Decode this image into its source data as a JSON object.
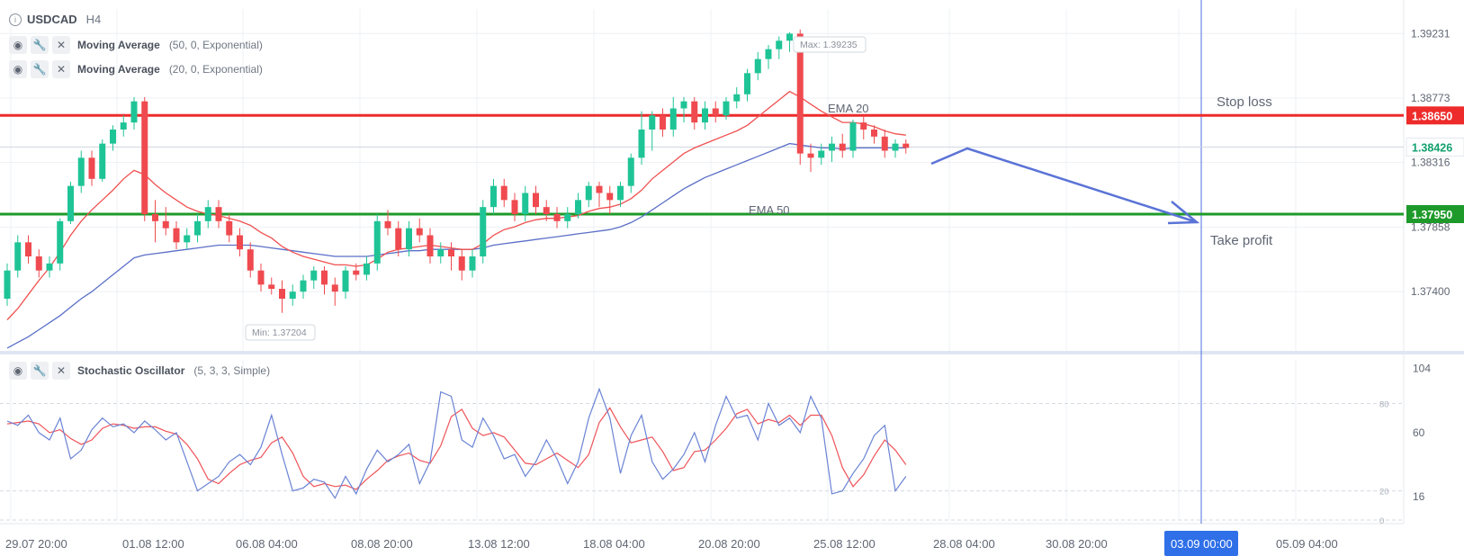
{
  "header": {
    "symbol": "USDCAD",
    "timeframe": "H4",
    "indicators": [
      {
        "name": "Moving Average",
        "params": "(50, 0, Exponential)"
      },
      {
        "name": "Moving Average",
        "params": "(20, 0, Exponential)"
      }
    ],
    "oscillator": {
      "name": "Stochastic Oscillator",
      "params": "(5, 3, 3, Simple)"
    }
  },
  "chart_data": {
    "type": "candlestick",
    "price_axis": {
      "ticks": [
        "1.39231",
        "1.38773",
        "1.38316",
        "1.37858",
        "1.37400"
      ]
    },
    "time_axis": {
      "ticks": [
        "29.07 20:00",
        "01.08 12:00",
        "06.08 04:00",
        "08.08 20:00",
        "13.08 12:00",
        "18.08 04:00",
        "20.08 20:00",
        "25.08 12:00",
        "28.08 04:00",
        "30.08 20:00",
        "05.09 04:00"
      ],
      "highlight": "03.09 00:00"
    },
    "candles": [
      [
        1.3735,
        1.3755,
        1.373,
        1.376
      ],
      [
        1.3755,
        1.3775,
        1.375,
        1.378
      ],
      [
        1.3775,
        1.3765,
        1.376,
        1.378
      ],
      [
        1.3765,
        1.3755,
        1.375,
        1.377
      ],
      [
        1.3755,
        1.376,
        1.375,
        1.3765
      ],
      [
        1.376,
        1.379,
        1.3755,
        1.3792
      ],
      [
        1.379,
        1.3815,
        1.3788,
        1.3818
      ],
      [
        1.3815,
        1.3835,
        1.381,
        1.384
      ],
      [
        1.3835,
        1.382,
        1.3815,
        1.384
      ],
      [
        1.382,
        1.3845,
        1.3818,
        1.3848
      ],
      [
        1.3845,
        1.3855,
        1.384,
        1.3858
      ],
      [
        1.3855,
        1.386,
        1.385,
        1.3865
      ],
      [
        1.386,
        1.3875,
        1.3855,
        1.3878
      ],
      [
        1.3875,
        1.3795,
        1.379,
        1.3878
      ],
      [
        1.3795,
        1.379,
        1.3775,
        1.3805
      ],
      [
        1.379,
        1.3785,
        1.378,
        1.38
      ],
      [
        1.3785,
        1.3775,
        1.377,
        1.379
      ],
      [
        1.3775,
        1.378,
        1.377,
        1.3785
      ],
      [
        1.378,
        1.379,
        1.3775,
        1.3795
      ],
      [
        1.379,
        1.38,
        1.3785,
        1.3805
      ],
      [
        1.38,
        1.379,
        1.3785,
        1.3805
      ],
      [
        1.379,
        1.378,
        1.3775,
        1.3795
      ],
      [
        1.378,
        1.377,
        1.3765,
        1.3785
      ],
      [
        1.377,
        1.3755,
        1.375,
        1.3775
      ],
      [
        1.3755,
        1.3745,
        1.374,
        1.376
      ],
      [
        1.3745,
        1.3742,
        1.3738,
        1.375
      ],
      [
        1.3742,
        1.3735,
        1.3725,
        1.3748
      ],
      [
        1.3735,
        1.374,
        1.373,
        1.3745
      ],
      [
        1.374,
        1.3748,
        1.3735,
        1.3752
      ],
      [
        1.3748,
        1.3755,
        1.3742,
        1.3758
      ],
      [
        1.3755,
        1.3745,
        1.3738,
        1.3758
      ],
      [
        1.3745,
        1.374,
        1.373,
        1.375
      ],
      [
        1.374,
        1.3755,
        1.3735,
        1.3758
      ],
      [
        1.3755,
        1.3752,
        1.3748,
        1.376
      ],
      [
        1.3752,
        1.376,
        1.3748,
        1.3765
      ],
      [
        1.376,
        1.379,
        1.3755,
        1.3795
      ],
      [
        1.379,
        1.3785,
        1.378,
        1.3798
      ],
      [
        1.3785,
        1.377,
        1.3765,
        1.379
      ],
      [
        1.377,
        1.3785,
        1.3765,
        1.379
      ],
      [
        1.3785,
        1.378,
        1.3775,
        1.3792
      ],
      [
        1.378,
        1.3765,
        1.376,
        1.3785
      ],
      [
        1.3765,
        1.377,
        1.376,
        1.3775
      ],
      [
        1.377,
        1.3765,
        1.3755,
        1.3775
      ],
      [
        1.3765,
        1.3755,
        1.3748,
        1.377
      ],
      [
        1.3755,
        1.3765,
        1.375,
        1.377
      ],
      [
        1.3765,
        1.38,
        1.376,
        1.3805
      ],
      [
        1.38,
        1.3815,
        1.3795,
        1.382
      ],
      [
        1.3815,
        1.3805,
        1.38,
        1.382
      ],
      [
        1.3805,
        1.3795,
        1.379,
        1.381
      ],
      [
        1.3795,
        1.381,
        1.379,
        1.3815
      ],
      [
        1.381,
        1.38,
        1.3795,
        1.3815
      ],
      [
        1.38,
        1.3795,
        1.379,
        1.3805
      ],
      [
        1.3795,
        1.379,
        1.3785,
        1.38
      ],
      [
        1.379,
        1.3795,
        1.3785,
        1.38
      ],
      [
        1.3795,
        1.3805,
        1.3792,
        1.381
      ],
      [
        1.3805,
        1.3815,
        1.38,
        1.3818
      ],
      [
        1.3815,
        1.381,
        1.38,
        1.3818
      ],
      [
        1.381,
        1.3805,
        1.3795,
        1.3815
      ],
      [
        1.3805,
        1.3815,
        1.38,
        1.3818
      ],
      [
        1.3815,
        1.3835,
        1.381,
        1.3838
      ],
      [
        1.3835,
        1.3855,
        1.383,
        1.3868
      ],
      [
        1.3855,
        1.3865,
        1.384,
        1.3868
      ],
      [
        1.3865,
        1.3855,
        1.385,
        1.387
      ],
      [
        1.3855,
        1.387,
        1.385,
        1.3878
      ],
      [
        1.387,
        1.3875,
        1.386,
        1.3878
      ],
      [
        1.3875,
        1.386,
        1.3855,
        1.3878
      ],
      [
        1.386,
        1.387,
        1.3855,
        1.3875
      ],
      [
        1.387,
        1.3865,
        1.386,
        1.3875
      ],
      [
        1.3865,
        1.3875,
        1.3862,
        1.3878
      ],
      [
        1.3875,
        1.388,
        1.387,
        1.3885
      ],
      [
        1.388,
        1.3895,
        1.3875,
        1.3898
      ],
      [
        1.3895,
        1.3905,
        1.389,
        1.391
      ],
      [
        1.3905,
        1.3912,
        1.3898,
        1.3915
      ],
      [
        1.3912,
        1.3918,
        1.3905,
        1.3921
      ],
      [
        1.3918,
        1.3923,
        1.391,
        1.3924
      ],
      [
        1.3923,
        1.3838,
        1.383,
        1.3926
      ],
      [
        1.3838,
        1.3835,
        1.3825,
        1.3845
      ],
      [
        1.3835,
        1.384,
        1.383,
        1.3845
      ],
      [
        1.384,
        1.3845,
        1.3832,
        1.385
      ],
      [
        1.3845,
        1.384,
        1.3835,
        1.3852
      ],
      [
        1.384,
        1.386,
        1.3835,
        1.3862
      ],
      [
        1.386,
        1.3855,
        1.3848,
        1.3865
      ],
      [
        1.3855,
        1.385,
        1.3845,
        1.3858
      ],
      [
        1.385,
        1.384,
        1.3835,
        1.3855
      ],
      [
        1.384,
        1.3845,
        1.3835,
        1.3848
      ],
      [
        1.3845,
        1.3842,
        1.3838,
        1.3848
      ]
    ],
    "ema20": [
      1.372,
      1.3728,
      1.3738,
      1.3748,
      1.3757,
      1.3768,
      1.378,
      1.379,
      1.3798,
      1.3805,
      1.3812,
      1.382,
      1.3826,
      1.3823,
      1.3816,
      1.381,
      1.3805,
      1.38,
      1.3797,
      1.3795,
      1.3794,
      1.3792,
      1.379,
      1.3787,
      1.3782,
      1.3778,
      1.3772,
      1.3768,
      1.3765,
      1.3763,
      1.3761,
      1.3759,
      1.3759,
      1.3758,
      1.3759,
      1.3763,
      1.3768,
      1.377,
      1.3771,
      1.3772,
      1.3773,
      1.3772,
      1.3771,
      1.377,
      1.377,
      1.3774,
      1.378,
      1.3784,
      1.3786,
      1.3789,
      1.3791,
      1.3792,
      1.3792,
      1.3793,
      1.3794,
      1.3797,
      1.3799,
      1.38,
      1.3802,
      1.3806,
      1.3812,
      1.382,
      1.3826,
      1.3832,
      1.3838,
      1.3842,
      1.3845,
      1.3848,
      1.3851,
      1.3854,
      1.3858,
      1.3864,
      1.387,
      1.3876,
      1.3882,
      1.3878,
      1.3873,
      1.3868,
      1.3864,
      1.386,
      1.386,
      1.3859,
      1.3857,
      1.3854,
      1.3852,
      1.3851
    ],
    "ema50": [
      1.37,
      1.3704,
      1.3708,
      1.3713,
      1.3718,
      1.3723,
      1.3729,
      1.3735,
      1.374,
      1.3746,
      1.3752,
      1.3758,
      1.3764,
      1.3766,
      1.3767,
      1.3768,
      1.3769,
      1.377,
      1.3771,
      1.3772,
      1.3773,
      1.3773,
      1.3773,
      1.3773,
      1.3772,
      1.3771,
      1.377,
      1.3769,
      1.3768,
      1.3767,
      1.3766,
      1.3765,
      1.3765,
      1.3765,
      1.3765,
      1.3766,
      1.3767,
      1.3768,
      1.3769,
      1.3769,
      1.377,
      1.377,
      1.377,
      1.377,
      1.377,
      1.3771,
      1.3773,
      1.3774,
      1.3775,
      1.3776,
      1.3777,
      1.3778,
      1.3779,
      1.378,
      1.3781,
      1.3782,
      1.3783,
      1.3784,
      1.3786,
      1.3789,
      1.3793,
      1.3798,
      1.3803,
      1.3808,
      1.3813,
      1.3817,
      1.3821,
      1.3824,
      1.3827,
      1.383,
      1.3833,
      1.3836,
      1.3839,
      1.3842,
      1.3845,
      1.3844,
      1.3843,
      1.3842,
      1.3842,
      1.3841,
      1.3842,
      1.3842,
      1.3842,
      1.3842,
      1.3842,
      1.3842
    ],
    "stoch_k": [
      68,
      65,
      72,
      60,
      55,
      70,
      42,
      48,
      62,
      70,
      64,
      66,
      60,
      68,
      62,
      55,
      60,
      40,
      20,
      25,
      30,
      40,
      45,
      38,
      50,
      72,
      45,
      20,
      22,
      28,
      26,
      15,
      30,
      18,
      35,
      48,
      40,
      45,
      52,
      25,
      40,
      88,
      85,
      55,
      50,
      70,
      58,
      42,
      45,
      30,
      40,
      55,
      42,
      25,
      40,
      70,
      90,
      70,
      32,
      58,
      72,
      40,
      28,
      35,
      45,
      60,
      40,
      65,
      85,
      70,
      72,
      55,
      80,
      65,
      70,
      60,
      85,
      70,
      18,
      20,
      32,
      42,
      58,
      65,
      20,
      30
    ],
    "stoch_d": [
      66,
      67,
      68,
      66,
      60,
      62,
      56,
      52,
      55,
      63,
      66,
      65,
      63,
      64,
      64,
      61,
      59,
      52,
      42,
      28,
      25,
      32,
      38,
      41,
      43,
      53,
      57,
      46,
      30,
      23,
      25,
      23,
      24,
      21,
      28,
      34,
      41,
      44,
      46,
      41,
      39,
      51,
      71,
      76,
      63,
      58,
      60,
      57,
      48,
      39,
      38,
      42,
      46,
      41,
      36,
      45,
      67,
      77,
      64,
      53,
      55,
      57,
      47,
      34,
      36,
      47,
      48,
      55,
      63,
      73,
      76,
      66,
      69,
      67,
      72,
      65,
      72,
      72,
      58,
      36,
      23,
      31,
      44,
      55,
      48,
      38
    ],
    "stoch_ticks": [
      "104",
      "80",
      "60",
      "20",
      "16",
      "0"
    ],
    "levels": [
      {
        "name": "Stop loss",
        "price": 1.3865,
        "label": "1.38650",
        "color": "#ee2b2b"
      },
      {
        "name": "Take profit",
        "price": 1.3795,
        "label": "1.37950",
        "color": "#1e9a2a"
      }
    ],
    "current_price": {
      "label": "1.38426",
      "value": 1.38426,
      "color": "#11a06e"
    },
    "max_label": "Max: 1.39235",
    "min_label": "Min: 1.37204",
    "ema20_label": "EMA 20",
    "ema50_label": "EMA 50",
    "colors": {
      "up": "#1fc496",
      "down": "#ef4a4f",
      "ema20": "#f05050",
      "ema50": "#5b6fc7",
      "arrow": "#5a73d6",
      "stoch_k": "#6a83d4",
      "stoch_d": "#ef5358",
      "vline": "#4e6fe0"
    }
  }
}
